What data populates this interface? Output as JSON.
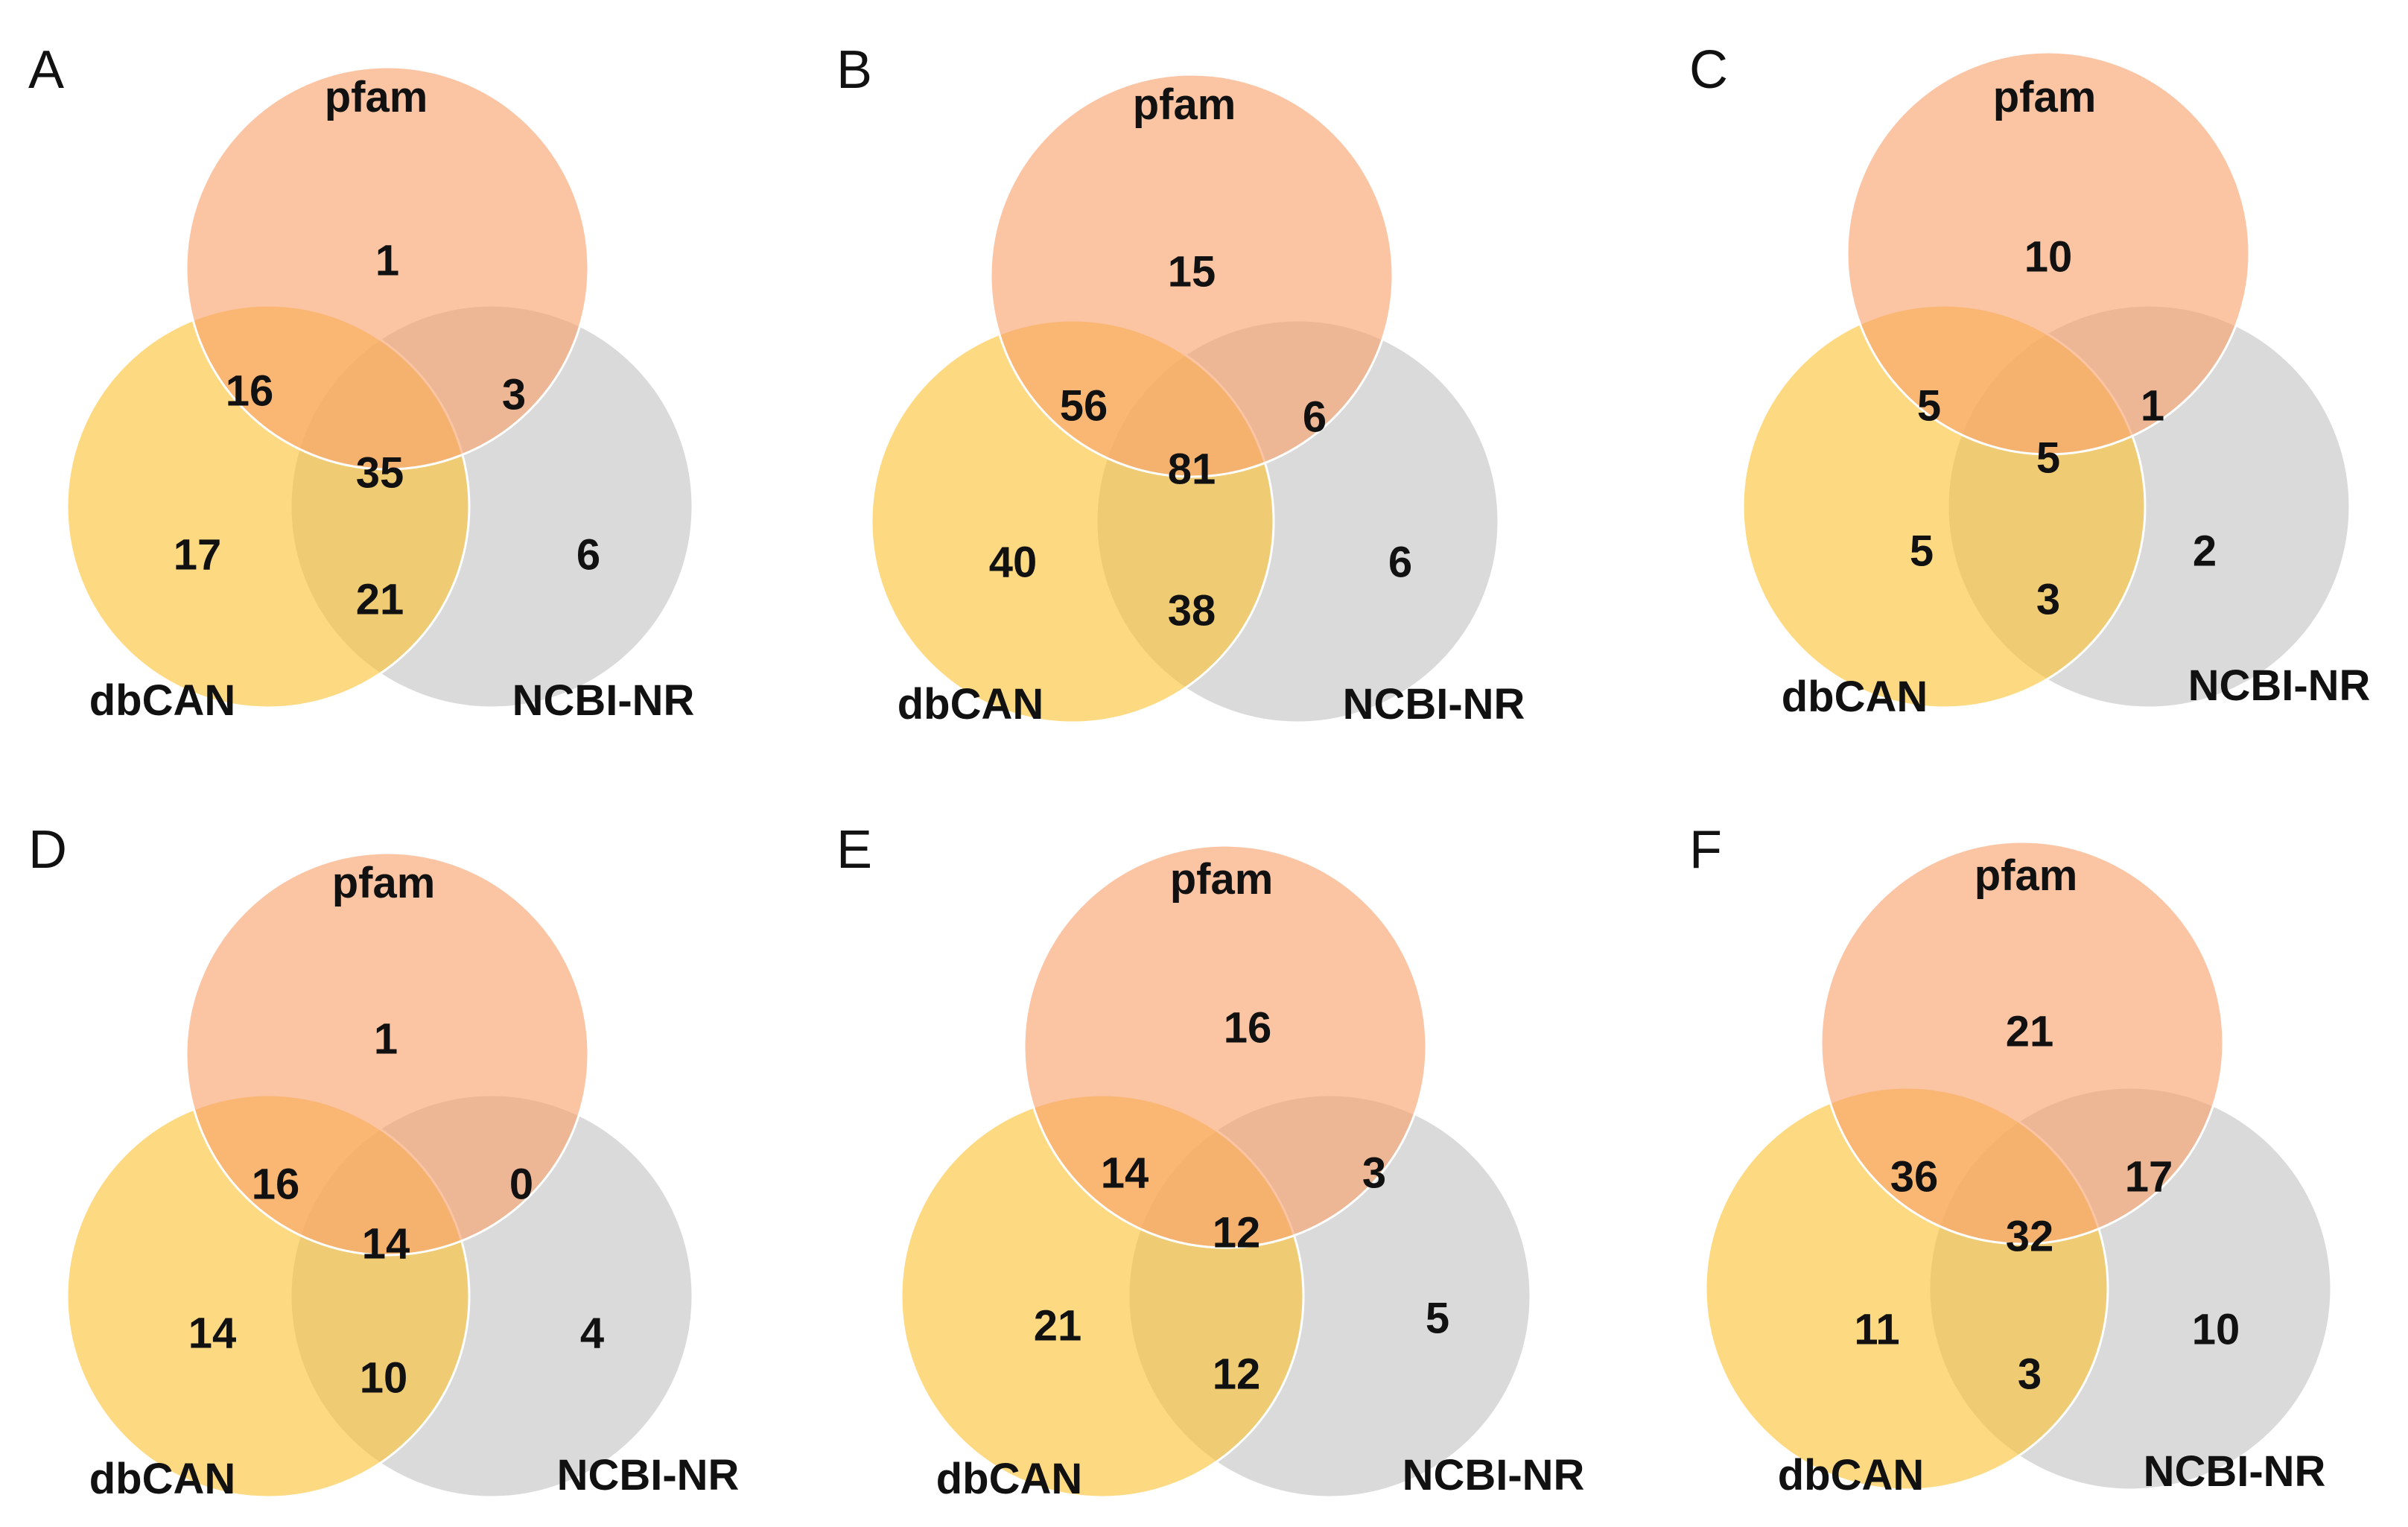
{
  "colors": {
    "pfam": "#f8a26c",
    "dbcan": "#fcc335",
    "ncbi": "#c4c4c4",
    "text": "#111111"
  },
  "panels": [
    {
      "letter": "A",
      "set_labels": {
        "pfam": "pfam",
        "dbcan": "dbCAN",
        "ncbi": "NCBI-NR"
      },
      "regions": {
        "pfam_only": 1,
        "pfam_dbcan": 16,
        "pfam_ncbi": 3,
        "all_three": 35,
        "dbcan_only": 17,
        "dbcan_ncbi": 21,
        "ncbi_only": 6
      }
    },
    {
      "letter": "B",
      "set_labels": {
        "pfam": "pfam",
        "dbcan": "dbCAN",
        "ncbi": "NCBI-NR"
      },
      "regions": {
        "pfam_only": 15,
        "pfam_dbcan": 56,
        "pfam_ncbi": 6,
        "all_three": 81,
        "dbcan_only": 40,
        "dbcan_ncbi": 38,
        "ncbi_only": 6
      }
    },
    {
      "letter": "C",
      "set_labels": {
        "pfam": "pfam",
        "dbcan": "dbCAN",
        "ncbi": "NCBI-NR"
      },
      "regions": {
        "pfam_only": 10,
        "pfam_dbcan": 5,
        "pfam_ncbi": 1,
        "all_three": 5,
        "dbcan_only": 5,
        "dbcan_ncbi": 3,
        "ncbi_only": 2
      }
    },
    {
      "letter": "D",
      "set_labels": {
        "pfam": "pfam",
        "dbcan": "dbCAN",
        "ncbi": "NCBI-NR"
      },
      "regions": {
        "pfam_only": 1,
        "pfam_dbcan": 16,
        "pfam_ncbi": 0,
        "all_three": 14,
        "dbcan_only": 14,
        "dbcan_ncbi": 10,
        "ncbi_only": 4
      }
    },
    {
      "letter": "E",
      "set_labels": {
        "pfam": "pfam",
        "dbcan": "dbCAN",
        "ncbi": "NCBI-NR"
      },
      "regions": {
        "pfam_only": 16,
        "pfam_dbcan": 14,
        "pfam_ncbi": 3,
        "all_three": 12,
        "dbcan_only": 21,
        "dbcan_ncbi": 12,
        "ncbi_only": 5
      }
    },
    {
      "letter": "F",
      "set_labels": {
        "pfam": "pfam",
        "dbcan": "dbCAN",
        "ncbi": "NCBI-NR"
      },
      "regions": {
        "pfam_only": 21,
        "pfam_dbcan": 36,
        "pfam_ncbi": 17,
        "all_three": 32,
        "dbcan_only": 11,
        "dbcan_ncbi": 3,
        "ncbi_only": 10
      }
    }
  ]
}
